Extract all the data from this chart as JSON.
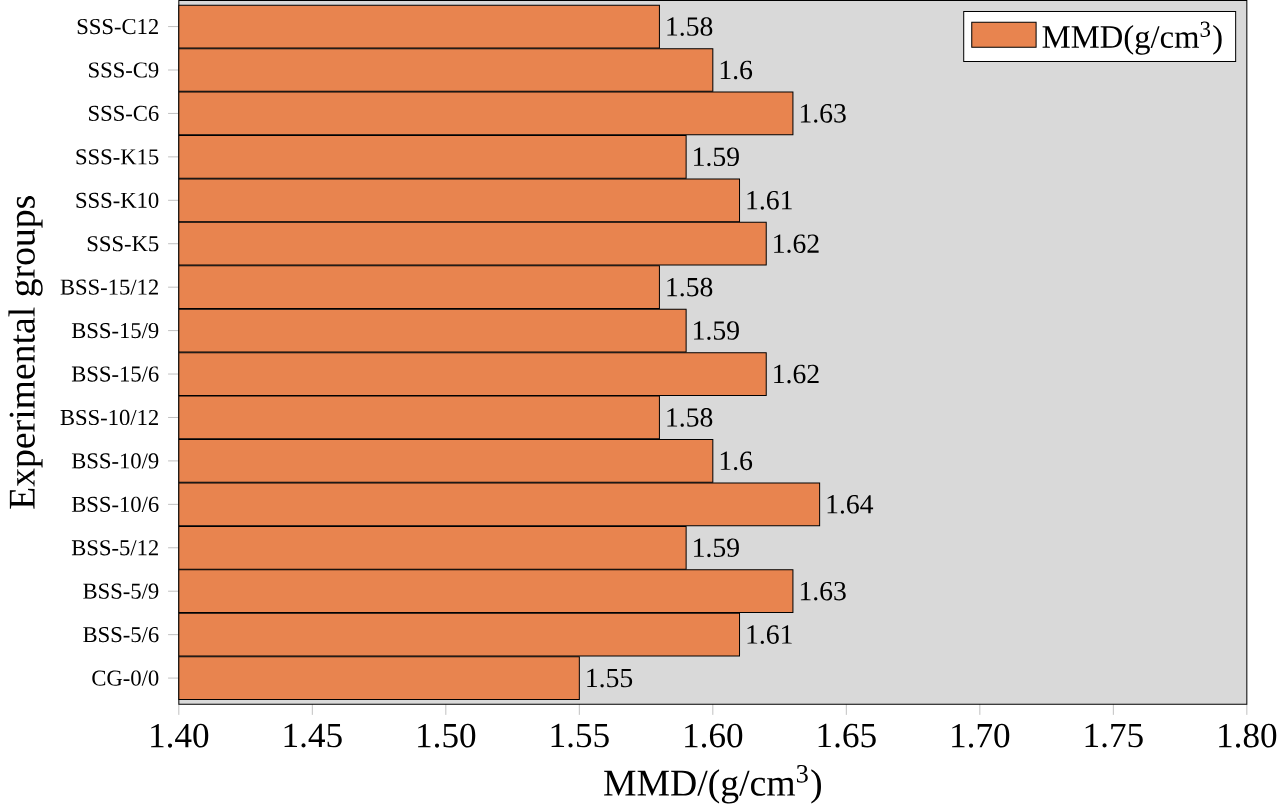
{
  "chart_data": {
    "type": "bar",
    "orientation": "horizontal",
    "xlabel": "MMD/(g/cm$^{3}$)",
    "ylabel": "Experimental groups",
    "categories": [
      "SSS-C12",
      "SSS-C9",
      "SSS-C6",
      "SSS-K15",
      "SSS-K10",
      "SSS-K5",
      "BSS-15/12",
      "BSS-15/9",
      "BSS-15/6",
      "BSS-10/12",
      "BSS-10/9",
      "BSS-10/6",
      "BSS-5/12",
      "BSS-5/9",
      "BSS-5/6",
      "CG-0/0"
    ],
    "series": [
      {
        "name": "MMD(g/cm$^{3}$)",
        "color": "#e8844f",
        "values": [
          1.58,
          1.6,
          1.63,
          1.59,
          1.61,
          1.62,
          1.58,
          1.59,
          1.62,
          1.58,
          1.6,
          1.64,
          1.59,
          1.63,
          1.61,
          1.55
        ]
      }
    ],
    "xlim": [
      1.4,
      1.8
    ],
    "xticks": [
      {
        "value": 1.4,
        "label": "1.40"
      },
      {
        "value": 1.45,
        "label": "1.45"
      },
      {
        "value": 1.5,
        "label": "1.50"
      },
      {
        "value": 1.55,
        "label": "1.55"
      },
      {
        "value": 1.6,
        "label": "1.60"
      },
      {
        "value": 1.65,
        "label": "1.65"
      },
      {
        "value": 1.7,
        "label": "1.70"
      },
      {
        "value": 1.75,
        "label": "1.75"
      },
      {
        "value": 1.8,
        "label": "1.80"
      }
    ],
    "data_labels": true,
    "legend": "top right",
    "grid": false
  }
}
